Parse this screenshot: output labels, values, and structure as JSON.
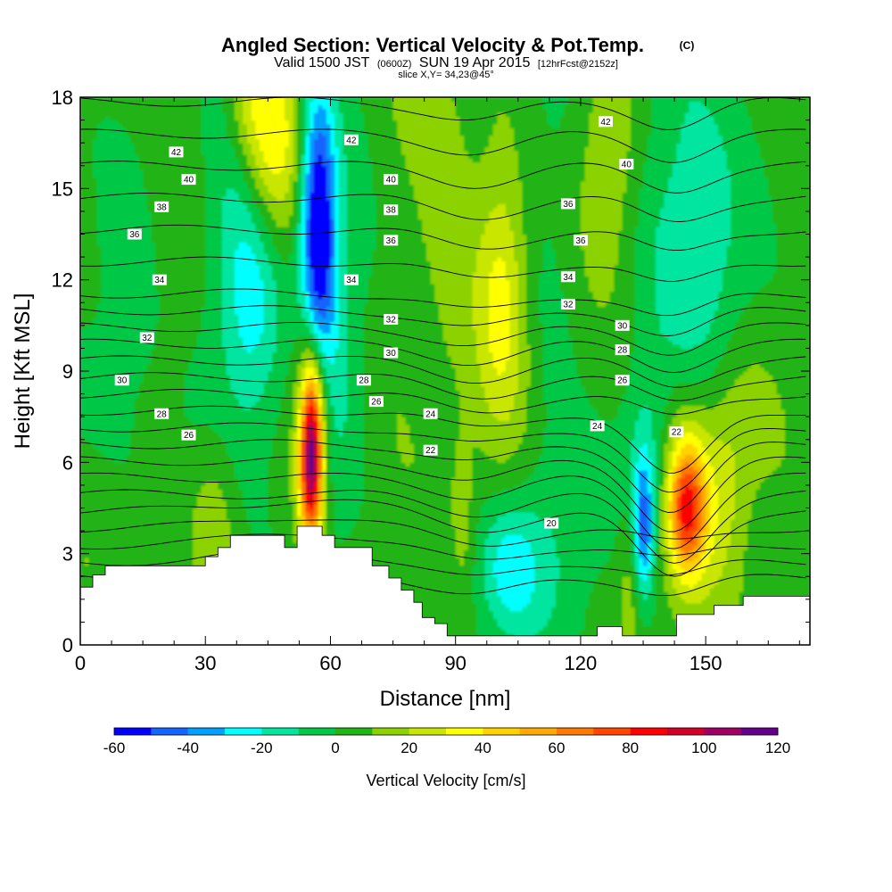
{
  "header": {
    "title": "Angled Section: Vertical Velocity & Pot.Temp.",
    "title_mark": "(C)",
    "valid_prefix": "Valid 1500 JST",
    "valid_utc": "(0600Z)",
    "valid_date": "SUN 19 Apr 2015",
    "forecast": "[12hrFcst@2152z]",
    "slice": "slice X,Y= 34,23@45°"
  },
  "chart_data": {
    "type": "heatmap",
    "xlabel": "Distance [nm]",
    "ylabel": "Height [Kft MSL]",
    "xlim": [
      0,
      175
    ],
    "ylim": [
      0,
      18
    ],
    "x_ticks": [
      0,
      30,
      60,
      90,
      120,
      150
    ],
    "x_tick_labels": [
      "0",
      "30",
      "60",
      "90",
      "120",
      "150"
    ],
    "y_ticks": [
      0,
      3,
      6,
      9,
      12,
      15,
      18
    ],
    "y_tick_labels": [
      "0",
      "3",
      "6",
      "9",
      "12",
      "15",
      "18"
    ],
    "colorbar": {
      "label": "Vertical Velocity [cm/s]",
      "min": -60,
      "max": 120,
      "step": 10,
      "tick_values": [
        -60,
        -40,
        -20,
        0,
        20,
        40,
        60,
        80,
        100,
        120
      ],
      "tick_labels": [
        "-60",
        "-40",
        "-20",
        "0",
        "20",
        "40",
        "60",
        "80",
        "100",
        "120"
      ],
      "colors": [
        "#0000ff",
        "#1464ff",
        "#00a0ff",
        "#00ffff",
        "#00e6a0",
        "#00c846",
        "#20b414",
        "#8cd200",
        "#c8e600",
        "#ffff00",
        "#ffd200",
        "#ffaa00",
        "#ff7800",
        "#ff4600",
        "#ff0000",
        "#d20028",
        "#a00064",
        "#64008c"
      ]
    },
    "vertical_velocity_features": [
      {
        "x": 12,
        "y": 10.5,
        "sx": 8,
        "sy": 6,
        "value": -8
      },
      {
        "x": 25,
        "y": 6.5,
        "sx": 5,
        "sy": 2.5,
        "value": -6
      },
      {
        "x": 22,
        "y": 14,
        "sx": 5,
        "sy": 5,
        "value": 8
      },
      {
        "x": 36,
        "y": 13,
        "sx": 5,
        "sy": 4.5,
        "value": -12
      },
      {
        "x": 42,
        "y": 11.5,
        "sx": 5,
        "sy": 3,
        "value": -28
      },
      {
        "x": 46,
        "y": 16.5,
        "sx": 5,
        "sy": 2.5,
        "value": 35
      },
      {
        "x": 40,
        "y": 17.5,
        "sx": 4,
        "sy": 1.5,
        "value": 14
      },
      {
        "x": 57,
        "y": 14.5,
        "sx": 3,
        "sy": 3,
        "value": -52
      },
      {
        "x": 57,
        "y": 11.5,
        "sx": 3,
        "sy": 3,
        "value": -35
      },
      {
        "x": 55.5,
        "y": 6.7,
        "sx": 1.8,
        "sy": 1.8,
        "value": 75
      },
      {
        "x": 56,
        "y": 8,
        "sx": 3,
        "sy": 2.8,
        "value": 35
      },
      {
        "x": 55,
        "y": 5,
        "sx": 2,
        "sy": 1.4,
        "value": 30
      },
      {
        "x": 61,
        "y": 9,
        "sx": 3,
        "sy": 5,
        "value": -10
      },
      {
        "x": 66,
        "y": 13,
        "sx": 5,
        "sy": 5,
        "value": -8
      },
      {
        "x": 75,
        "y": 10,
        "sx": 5,
        "sy": 8,
        "value": 5
      },
      {
        "x": 88,
        "y": 14.5,
        "sx": 5,
        "sy": 5,
        "value": 10
      },
      {
        "x": 101,
        "y": 11.5,
        "sx": 4,
        "sy": 3,
        "value": 22
      },
      {
        "x": 101,
        "y": 10.5,
        "sx": 7,
        "sy": 6,
        "value": 8
      },
      {
        "x": 112,
        "y": 12,
        "sx": 5,
        "sy": 7,
        "value": -8
      },
      {
        "x": 127,
        "y": 16,
        "sx": 5,
        "sy": 3,
        "value": 16
      },
      {
        "x": 145,
        "y": 15,
        "sx": 9,
        "sy": 4,
        "value": -17
      },
      {
        "x": 150,
        "y": 11,
        "sx": 7,
        "sy": 3,
        "value": -10
      },
      {
        "x": 103,
        "y": 2.5,
        "sx": 5,
        "sy": 1.5,
        "value": -24
      },
      {
        "x": 103,
        "y": 2.5,
        "sx": 12,
        "sy": 2.5,
        "value": -8
      },
      {
        "x": 118,
        "y": 3.5,
        "sx": 6,
        "sy": 2.2,
        "value": -6
      },
      {
        "x": 135,
        "y": 3.8,
        "sx": 1.8,
        "sy": 1.6,
        "value": -42
      },
      {
        "x": 136,
        "y": 6,
        "sx": 4,
        "sy": 2.2,
        "value": -18
      },
      {
        "x": 132,
        "y": 2.5,
        "sx": 2,
        "sy": 2,
        "value": 15
      },
      {
        "x": 145.5,
        "y": 4.5,
        "sx": 3,
        "sy": 1.4,
        "value": 55
      },
      {
        "x": 146,
        "y": 5,
        "sx": 5,
        "sy": 2.5,
        "value": 28
      },
      {
        "x": 155,
        "y": 5,
        "sx": 4,
        "sy": 2.5,
        "value": 14
      },
      {
        "x": 160,
        "y": 7.5,
        "sx": 6,
        "sy": 2,
        "value": 8
      },
      {
        "x": 92,
        "y": 4,
        "sx": 2,
        "sy": 2,
        "value": 10
      },
      {
        "x": 32,
        "y": 4,
        "sx": 4,
        "sy": 2,
        "value": 14
      },
      {
        "x": 35,
        "y": 1.5,
        "sx": 4,
        "sy": 1,
        "value": 15
      },
      {
        "x": 5,
        "y": 4,
        "sx": 6,
        "sy": 2,
        "value": 6
      }
    ],
    "potential_temperature_isentropes": [
      19,
      20,
      21,
      22,
      23,
      24,
      25,
      26,
      27,
      28,
      29,
      30,
      31,
      32,
      33,
      34,
      35,
      36,
      37,
      38,
      39,
      40,
      41,
      42,
      43
    ],
    "contour_labels": [
      {
        "text": "42",
        "x": 23,
        "y": 16.2
      },
      {
        "text": "40",
        "x": 26,
        "y": 15.3
      },
      {
        "text": "38",
        "x": 19.5,
        "y": 14.4
      },
      {
        "text": "36",
        "x": 13,
        "y": 13.5
      },
      {
        "text": "34",
        "x": 19,
        "y": 12.0
      },
      {
        "text": "32",
        "x": 16,
        "y": 10.1
      },
      {
        "text": "30",
        "x": 10,
        "y": 8.7
      },
      {
        "text": "28",
        "x": 19.5,
        "y": 7.6
      },
      {
        "text": "26",
        "x": 26,
        "y": 6.9
      },
      {
        "text": "42",
        "x": 65,
        "y": 16.6
      },
      {
        "text": "40",
        "x": 74.5,
        "y": 15.3
      },
      {
        "text": "38",
        "x": 74.5,
        "y": 14.3
      },
      {
        "text": "36",
        "x": 74.5,
        "y": 13.3
      },
      {
        "text": "34",
        "x": 65,
        "y": 12.0
      },
      {
        "text": "32",
        "x": 74.5,
        "y": 10.7
      },
      {
        "text": "30",
        "x": 74.5,
        "y": 9.6
      },
      {
        "text": "28",
        "x": 68,
        "y": 8.7
      },
      {
        "text": "26",
        "x": 71,
        "y": 8.0
      },
      {
        "text": "24",
        "x": 84,
        "y": 7.6
      },
      {
        "text": "22",
        "x": 84,
        "y": 6.4
      },
      {
        "text": "42",
        "x": 126,
        "y": 17.2
      },
      {
        "text": "40",
        "x": 131,
        "y": 15.8
      },
      {
        "text": "36",
        "x": 117,
        "y": 14.5
      },
      {
        "text": "36",
        "x": 120,
        "y": 13.3
      },
      {
        "text": "34",
        "x": 117,
        "y": 12.1
      },
      {
        "text": "32",
        "x": 117,
        "y": 11.2
      },
      {
        "text": "30",
        "x": 130,
        "y": 10.5
      },
      {
        "text": "28",
        "x": 130,
        "y": 9.7
      },
      {
        "text": "26",
        "x": 130,
        "y": 8.7
      },
      {
        "text": "24",
        "x": 124,
        "y": 7.2
      },
      {
        "text": "22",
        "x": 143,
        "y": 7.0
      },
      {
        "text": "20",
        "x": 113,
        "y": 4.0
      }
    ],
    "terrain_profile": [
      [
        0,
        1.9
      ],
      [
        3,
        1.9
      ],
      [
        3,
        2.3
      ],
      [
        6,
        2.3
      ],
      [
        6,
        2.6
      ],
      [
        30,
        2.6
      ],
      [
        30,
        2.9
      ],
      [
        33,
        2.9
      ],
      [
        33,
        3.2
      ],
      [
        36,
        3.2
      ],
      [
        36,
        3.6
      ],
      [
        49,
        3.6
      ],
      [
        49,
        3.2
      ],
      [
        52,
        3.2
      ],
      [
        52,
        3.9
      ],
      [
        58,
        3.9
      ],
      [
        58,
        3.6
      ],
      [
        61,
        3.6
      ],
      [
        61,
        3.2
      ],
      [
        70,
        3.2
      ],
      [
        70,
        2.6
      ],
      [
        74,
        2.6
      ],
      [
        74,
        2.2
      ],
      [
        77,
        2.2
      ],
      [
        77,
        1.8
      ],
      [
        80,
        1.8
      ],
      [
        80,
        1.4
      ],
      [
        82,
        1.4
      ],
      [
        82,
        0.9
      ],
      [
        85,
        0.9
      ],
      [
        85,
        0.7
      ],
      [
        88,
        0.7
      ],
      [
        88,
        0.3
      ],
      [
        124,
        0.3
      ],
      [
        124,
        0.6
      ],
      [
        130,
        0.6
      ],
      [
        130,
        0.3
      ],
      [
        143,
        0.3
      ],
      [
        143,
        1.0
      ],
      [
        152,
        1.0
      ],
      [
        152,
        1.3
      ],
      [
        159,
        1.3
      ],
      [
        159,
        1.6
      ],
      [
        175,
        1.6
      ]
    ]
  }
}
